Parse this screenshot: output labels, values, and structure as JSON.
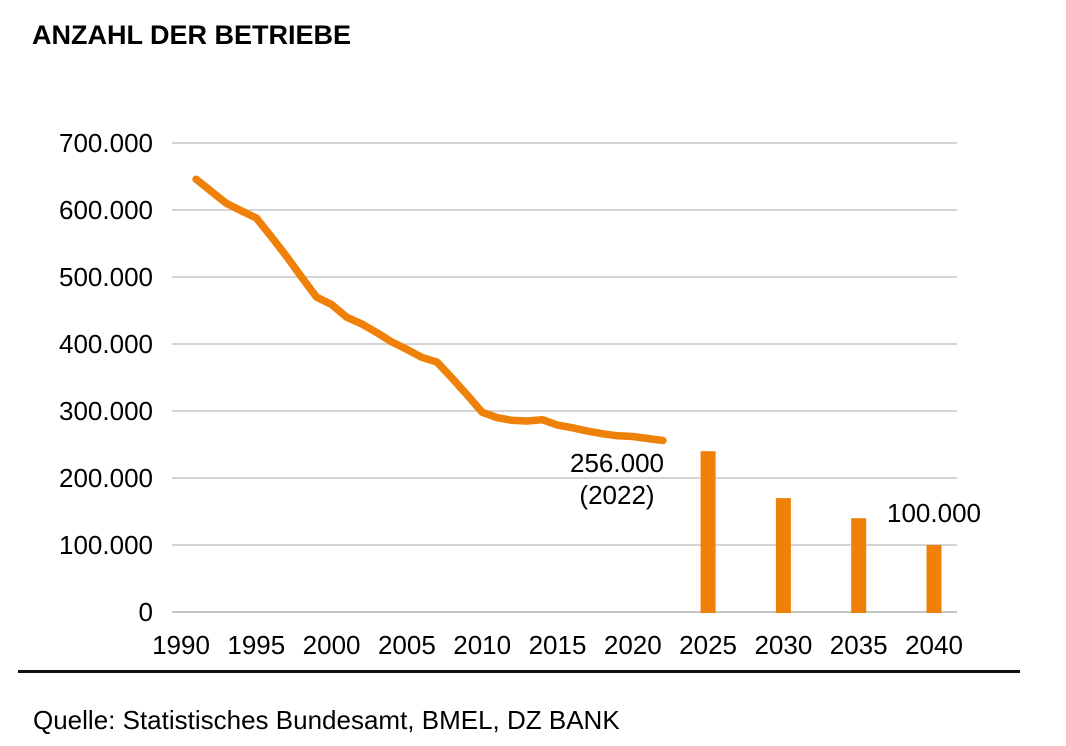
{
  "title": "ANZAHL DER BETRIEBE",
  "source": "Quelle: Statistisches Bundesamt, BMEL, DZ BANK",
  "colors": {
    "accent_orange": "#EF8109",
    "gridline": "#C6C6C6",
    "axis_baseline": "#B2B2B2",
    "text": "#000000"
  },
  "chart_data": {
    "type": "line+bar",
    "title": "ANZAHL DER BETRIEBE",
    "xlabel": "",
    "ylabel": "",
    "ylim": [
      0,
      700000
    ],
    "xlim": [
      1990,
      2040
    ],
    "grid": "horizontal",
    "legend": "none",
    "yticks": [
      {
        "value": 700000,
        "label": "700.000"
      },
      {
        "value": 600000,
        "label": "600.000"
      },
      {
        "value": 500000,
        "label": "500.000"
      },
      {
        "value": 400000,
        "label": "400.000"
      },
      {
        "value": 300000,
        "label": "300.000"
      },
      {
        "value": 200000,
        "label": "200.000"
      },
      {
        "value": 100000,
        "label": "100.000"
      },
      {
        "value": 0,
        "label": "0"
      }
    ],
    "xticks": [
      {
        "value": 1990,
        "label": "1990"
      },
      {
        "value": 1995,
        "label": "1995"
      },
      {
        "value": 2000,
        "label": "2000"
      },
      {
        "value": 2005,
        "label": "2005"
      },
      {
        "value": 2010,
        "label": "2010"
      },
      {
        "value": 2015,
        "label": "2015"
      },
      {
        "value": 2020,
        "label": "2020"
      },
      {
        "value": 2025,
        "label": "2025"
      },
      {
        "value": 2030,
        "label": "2030"
      },
      {
        "value": 2035,
        "label": "2035"
      },
      {
        "value": 2040,
        "label": "2040"
      }
    ],
    "line_series": {
      "points": [
        [
          1991,
          646000
        ],
        [
          1992,
          628000
        ],
        [
          1993,
          610000
        ],
        [
          1994,
          599000
        ],
        [
          1995,
          588000
        ],
        [
          1996,
          560000
        ],
        [
          1997,
          531000
        ],
        [
          1998,
          500000
        ],
        [
          1999,
          470000
        ],
        [
          2000,
          459000
        ],
        [
          2001,
          440000
        ],
        [
          2002,
          430000
        ],
        [
          2003,
          417000
        ],
        [
          2004,
          403000
        ],
        [
          2005,
          392000
        ],
        [
          2006,
          380000
        ],
        [
          2007,
          373000
        ],
        [
          2008,
          349000
        ],
        [
          2009,
          324000
        ],
        [
          2010,
          298000
        ],
        [
          2011,
          290000
        ],
        [
          2012,
          286000
        ],
        [
          2013,
          285000
        ],
        [
          2014,
          287000
        ],
        [
          2015,
          279000
        ],
        [
          2016,
          275000
        ],
        [
          2017,
          270000
        ],
        [
          2018,
          266000
        ],
        [
          2019,
          263000
        ],
        [
          2020,
          262000
        ],
        [
          2021,
          259000
        ],
        [
          2022,
          256000
        ]
      ]
    },
    "bar_series": {
      "points": [
        [
          2025,
          240000
        ],
        [
          2030,
          170000
        ],
        [
          2035,
          140000
        ],
        [
          2040,
          100000
        ]
      ]
    },
    "annotations": [
      {
        "id": "latest-actual",
        "lines": [
          "256.000",
          "(2022)"
        ]
      },
      {
        "id": "forecast-2040",
        "lines": [
          "100.000"
        ]
      }
    ]
  }
}
